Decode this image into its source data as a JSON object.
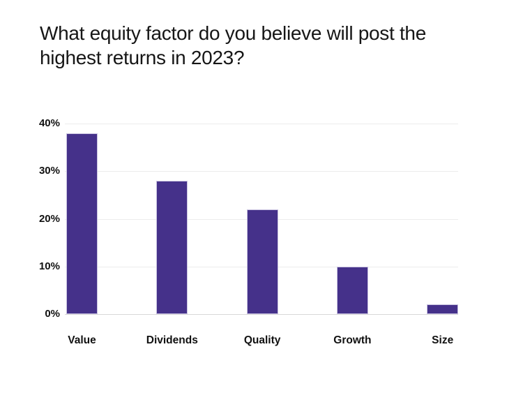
{
  "title_lines": [
    "What equity factor do you believe will post the",
    "highest returns in 2023?"
  ],
  "chart_data": {
    "type": "bar",
    "title": "What equity factor do you believe will post the highest returns in 2023?",
    "categories": [
      "Value",
      "Dividends",
      "Quality",
      "Growth",
      "Size"
    ],
    "values": [
      38,
      28,
      22,
      10,
      2
    ],
    "value_unit": "%",
    "xlabel": "",
    "ylabel": "",
    "ylim": [
      0,
      40
    ],
    "ytick_labels": [
      "40%",
      "30%",
      "20%",
      "10%",
      "0%"
    ],
    "ytick_values": [
      40,
      30,
      20,
      10,
      0
    ],
    "grid": true,
    "legend": false,
    "colors": {
      "bar": "#45318A",
      "bar_border": "#c9c3e0",
      "gridline": "#ececec",
      "baseline": "#d8d8d8",
      "text": "#111111",
      "background": "#ffffff"
    }
  }
}
